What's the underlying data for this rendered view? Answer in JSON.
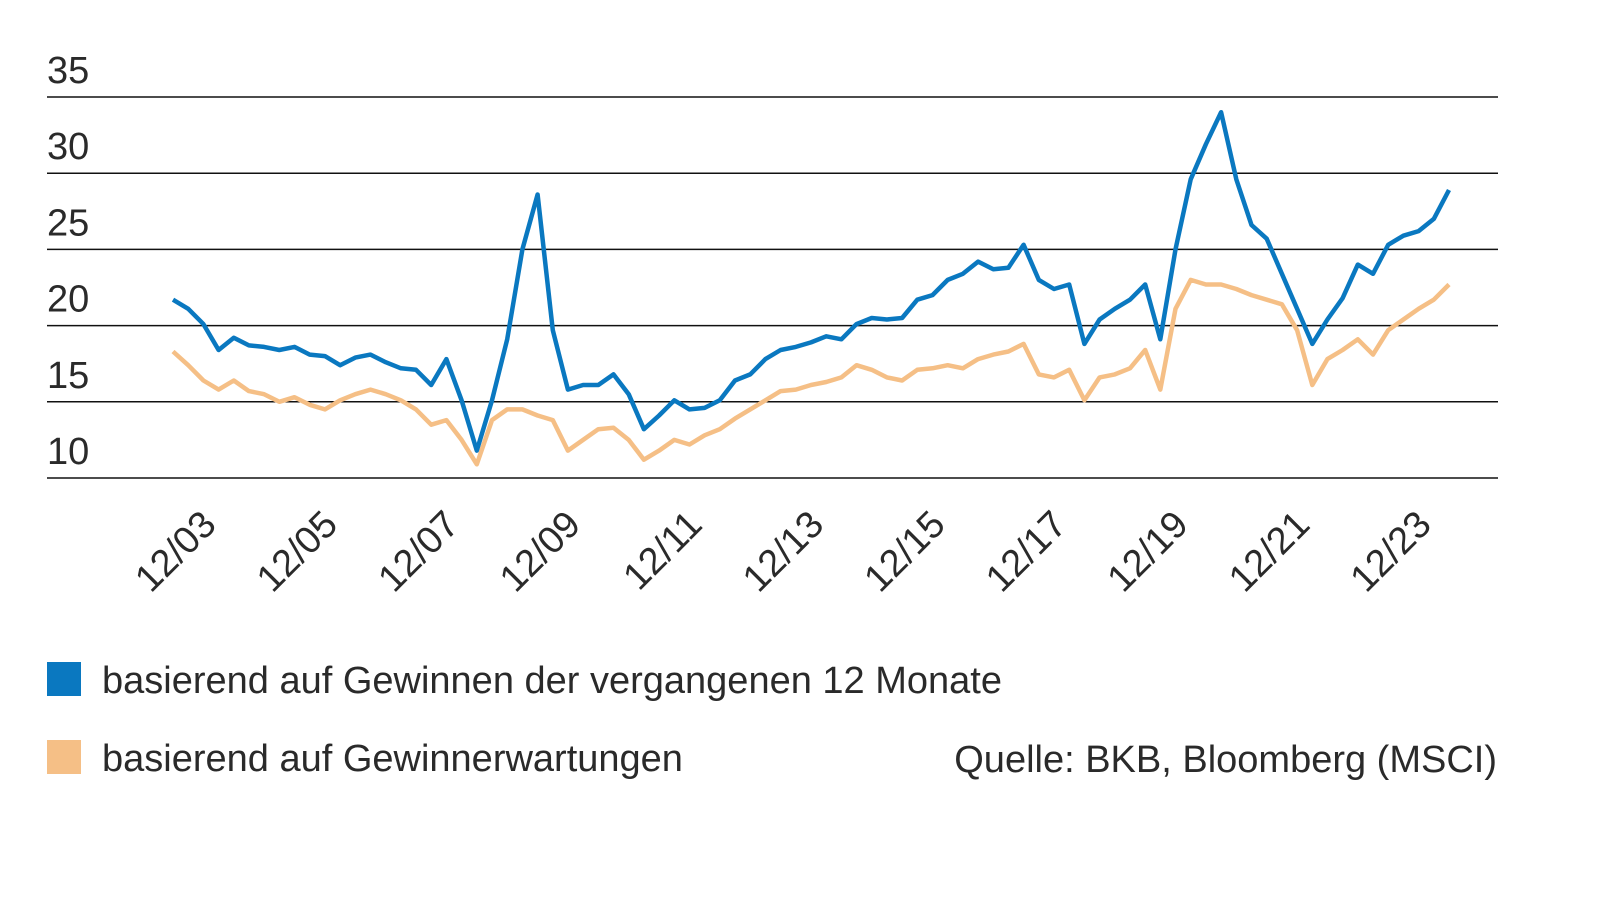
{
  "chart_data": {
    "type": "line",
    "categories": [
      null,
      null,
      "12/03",
      null,
      null,
      null,
      null,
      null,
      null,
      null,
      "12/05",
      null,
      null,
      null,
      null,
      null,
      null,
      null,
      "12/07",
      null,
      null,
      null,
      null,
      null,
      null,
      null,
      "12/09",
      null,
      null,
      null,
      null,
      null,
      null,
      null,
      "12/11",
      null,
      null,
      null,
      null,
      null,
      null,
      null,
      "12/13",
      null,
      null,
      null,
      null,
      null,
      null,
      null,
      "12/15",
      null,
      null,
      null,
      null,
      null,
      null,
      null,
      "12/17",
      null,
      null,
      null,
      null,
      null,
      null,
      null,
      "12/19",
      null,
      null,
      null,
      null,
      null,
      null,
      null,
      "12/21",
      null,
      null,
      null,
      null,
      null,
      null,
      null,
      "12/23",
      null,
      null
    ],
    "series": [
      {
        "name": "basierend auf Gewinnen der vergangenen 12 Monate",
        "color": "#0a78c0",
        "values": [
          21.7,
          21.1,
          20.1,
          18.4,
          19.2,
          18.7,
          18.6,
          18.4,
          18.6,
          18.1,
          18.0,
          17.4,
          17.9,
          18.1,
          17.6,
          17.2,
          17.1,
          16.1,
          17.8,
          15.1,
          11.8,
          15.1,
          19.1,
          25.0,
          28.6,
          19.7,
          15.8,
          16.1,
          16.1,
          16.8,
          15.5,
          13.2,
          14.1,
          15.1,
          14.5,
          14.6,
          15.1,
          16.4,
          16.8,
          17.8,
          18.4,
          18.6,
          18.9,
          19.3,
          19.1,
          20.1,
          20.5,
          20.4,
          20.5,
          21.7,
          22.0,
          23.0,
          23.4,
          24.2,
          23.7,
          23.8,
          25.3,
          23.0,
          22.4,
          22.7,
          18.8,
          20.4,
          21.1,
          21.7,
          22.7,
          19.1,
          25.0,
          29.6,
          31.9,
          34.0,
          29.6,
          26.6,
          25.7,
          23.4,
          21.1,
          18.8,
          20.4,
          21.8,
          24.0,
          23.4,
          25.3,
          25.9,
          26.2,
          27.0,
          28.9
        ]
      },
      {
        "name": "basierend auf Gewinnerwartungen",
        "color": "#f5bf86",
        "values": [
          18.3,
          17.4,
          16.4,
          15.8,
          16.4,
          15.7,
          15.5,
          15.0,
          15.3,
          14.8,
          14.5,
          15.1,
          15.5,
          15.8,
          15.5,
          15.1,
          14.5,
          13.5,
          13.8,
          12.5,
          10.9,
          13.8,
          14.5,
          14.5,
          14.1,
          13.8,
          11.8,
          12.5,
          13.2,
          13.3,
          12.5,
          11.2,
          11.8,
          12.5,
          12.2,
          12.8,
          13.2,
          13.9,
          14.5,
          15.1,
          15.7,
          15.8,
          16.1,
          16.3,
          16.6,
          17.4,
          17.1,
          16.6,
          16.4,
          17.1,
          17.2,
          17.4,
          17.2,
          17.8,
          18.1,
          18.3,
          18.8,
          16.8,
          16.6,
          17.1,
          15.1,
          16.6,
          16.8,
          17.2,
          18.4,
          15.8,
          21.1,
          23.0,
          22.7,
          22.7,
          22.4,
          22.0,
          21.7,
          21.4,
          19.7,
          16.1,
          17.8,
          18.4,
          19.1,
          18.1,
          19.7,
          20.4,
          21.1,
          21.7,
          22.7
        ]
      }
    ],
    "ylim": [
      10,
      35
    ],
    "yticks": [
      10,
      15,
      20,
      25,
      30,
      35
    ],
    "grid": true,
    "source": "Quelle: BKB, Bloomberg (MSCI)"
  }
}
